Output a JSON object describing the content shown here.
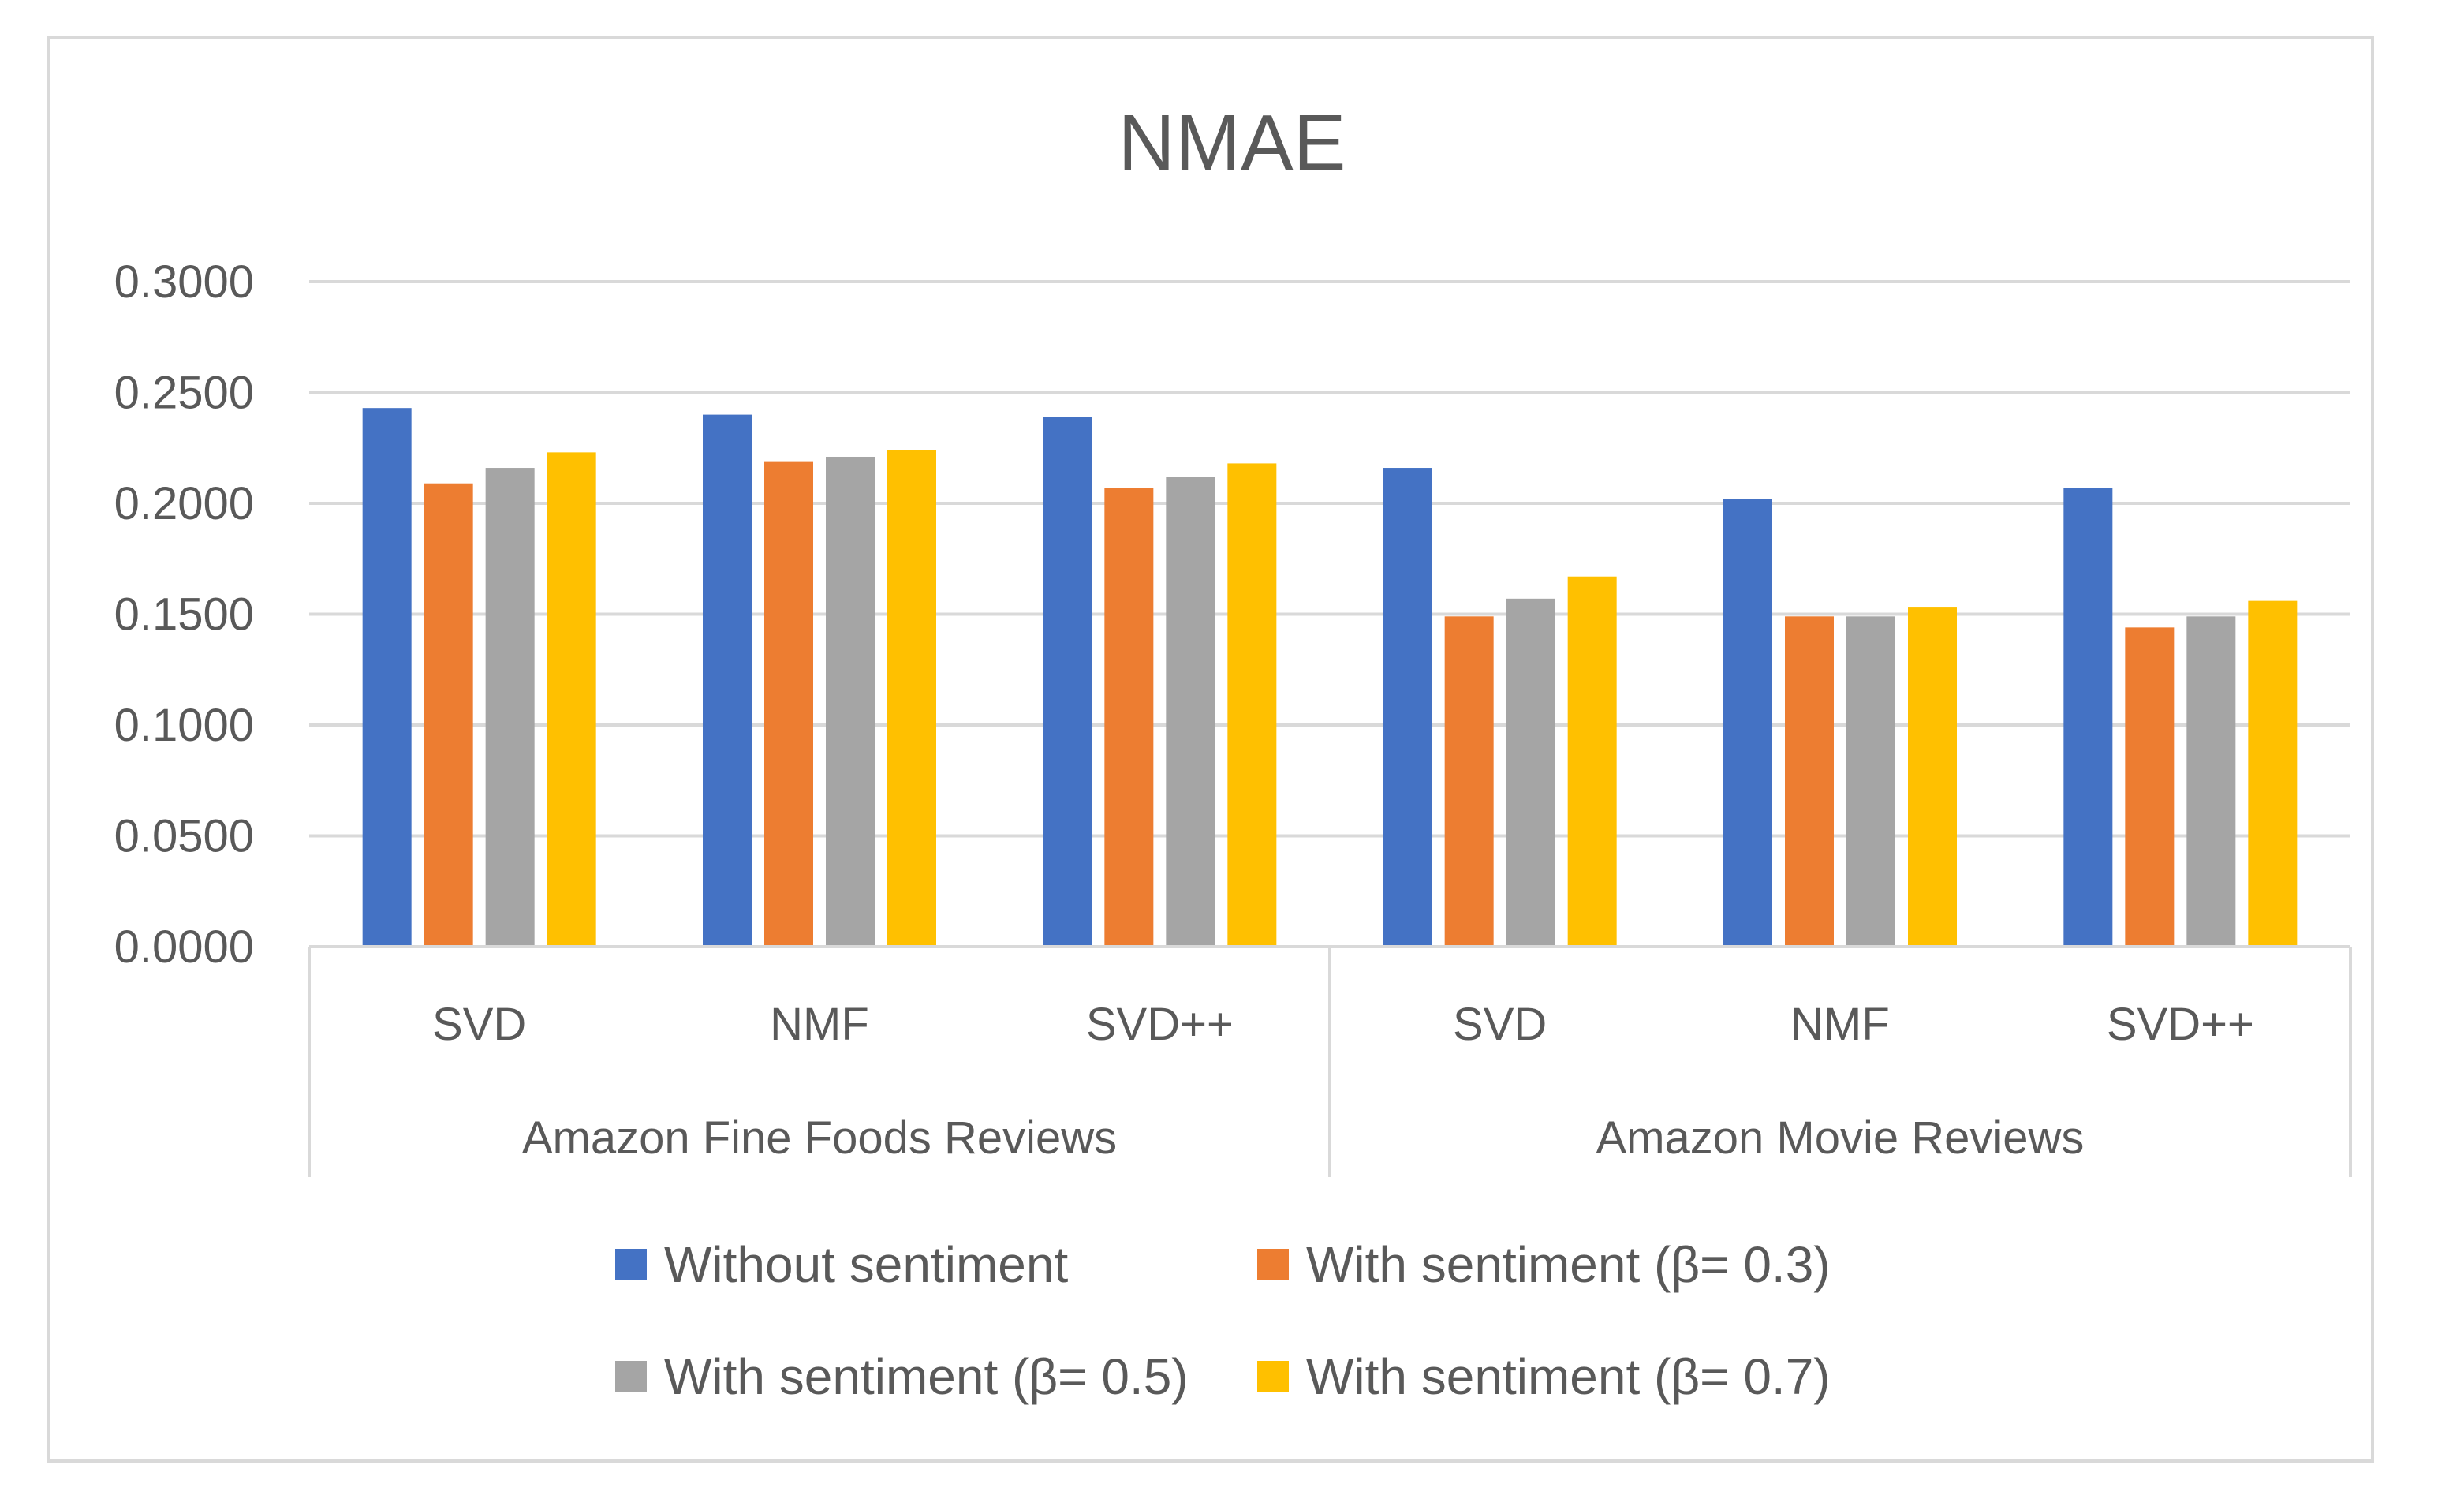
{
  "chart_data": {
    "type": "bar",
    "title": "NMAE",
    "xlabel": "",
    "ylabel": "",
    "ylim": [
      0,
      0.3
    ],
    "yticks": [
      "0.0000",
      "0.0500",
      "0.1000",
      "0.1500",
      "0.2000",
      "0.2500",
      "0.3000"
    ],
    "ytick_values": [
      0,
      0.05,
      0.1,
      0.15,
      0.2,
      0.25,
      0.3
    ],
    "grid": true,
    "legend_position": "bottom",
    "groups": [
      {
        "label": "Amazon Fine Foods Reviews",
        "categories": [
          "SVD",
          "NMF",
          "SVD++"
        ]
      },
      {
        "label": "Amazon Movie Reviews",
        "categories": [
          "SVD",
          "NMF",
          "SVD++"
        ]
      }
    ],
    "categories": [
      "SVD",
      "NMF",
      "SVD++",
      "SVD",
      "NMF",
      "SVD++"
    ],
    "series": [
      {
        "name": "Without sentiment",
        "color": "#4472c4",
        "values": [
          0.243,
          0.24,
          0.239,
          0.216,
          0.202,
          0.207
        ]
      },
      {
        "name": "With sentiment (β= 0.3)",
        "color": "#ed7d31",
        "values": [
          0.209,
          0.219,
          0.207,
          0.149,
          0.149,
          0.144
        ]
      },
      {
        "name": "With sentiment (β= 0.5)",
        "color": "#a5a5a5",
        "values": [
          0.216,
          0.221,
          0.212,
          0.157,
          0.149,
          0.149
        ]
      },
      {
        "name": "With sentiment (β= 0.7)",
        "color": "#ffc000",
        "values": [
          0.223,
          0.224,
          0.218,
          0.167,
          0.153,
          0.156
        ]
      }
    ]
  }
}
